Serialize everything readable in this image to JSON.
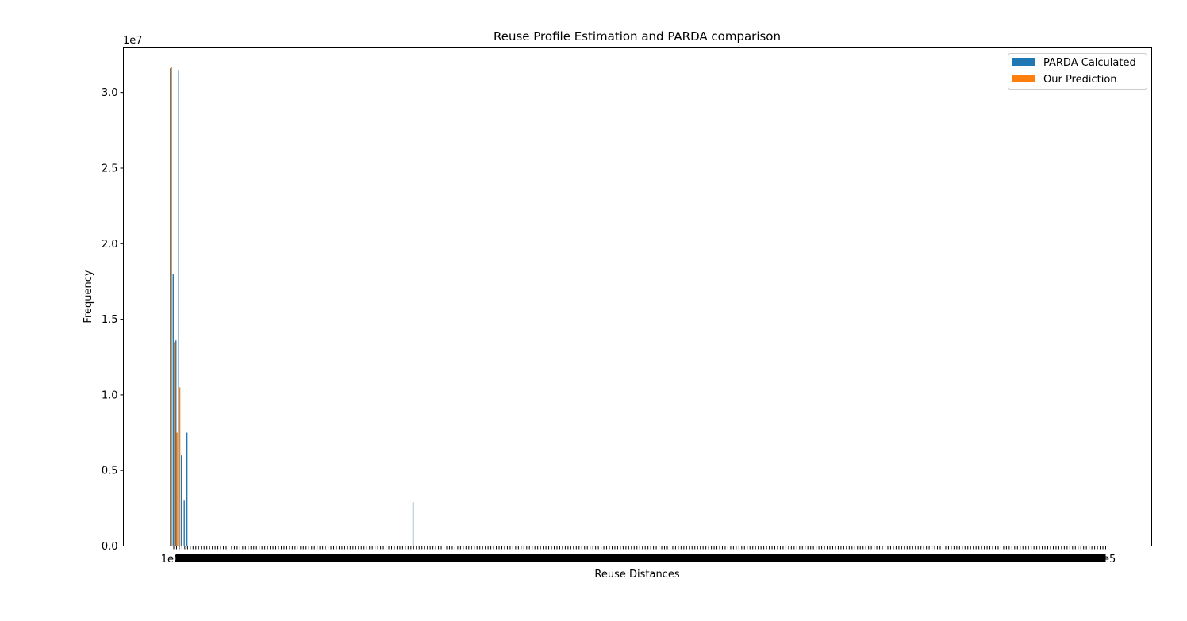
{
  "chart_data": {
    "type": "bar",
    "title": "Reuse Profile Estimation and PARDA comparison",
    "xlabel": "Reuse Distances",
    "ylabel": "Frequency",
    "y_offset_label": "1e7",
    "ylim": [
      0,
      33000000
    ],
    "y_ticks": [
      0,
      5000000,
      10000000,
      15000000,
      20000000,
      25000000,
      30000000
    ],
    "y_tick_labels": [
      "0.0",
      "0.5",
      "1.0",
      "1.5",
      "2.0",
      "2.5",
      "3.0"
    ],
    "x_tick_count": 340,
    "x_tick_label_first": "1e0",
    "x_tick_label_last": "1e5",
    "legend_position": "top-right",
    "series": [
      {
        "name": "PARDA Calculated",
        "color": "#1f77b4",
        "points": [
          {
            "slot": 0,
            "value": 31600000
          },
          {
            "slot": 1,
            "value": 18000000
          },
          {
            "slot": 2,
            "value": 13600000
          },
          {
            "slot": 3,
            "value": 31500000
          },
          {
            "slot": 4,
            "value": 6000000
          },
          {
            "slot": 5,
            "value": 3000000
          },
          {
            "slot": 6,
            "value": 7500000
          },
          {
            "slot": 88,
            "value": 2900000
          }
        ]
      },
      {
        "name": "Our Prediction",
        "color": "#ff7f0e",
        "points": [
          {
            "slot": 0,
            "value": 31700000
          },
          {
            "slot": 1,
            "value": 13500000
          },
          {
            "slot": 2,
            "value": 7500000
          },
          {
            "slot": 3,
            "value": 10500000
          }
        ]
      }
    ]
  }
}
